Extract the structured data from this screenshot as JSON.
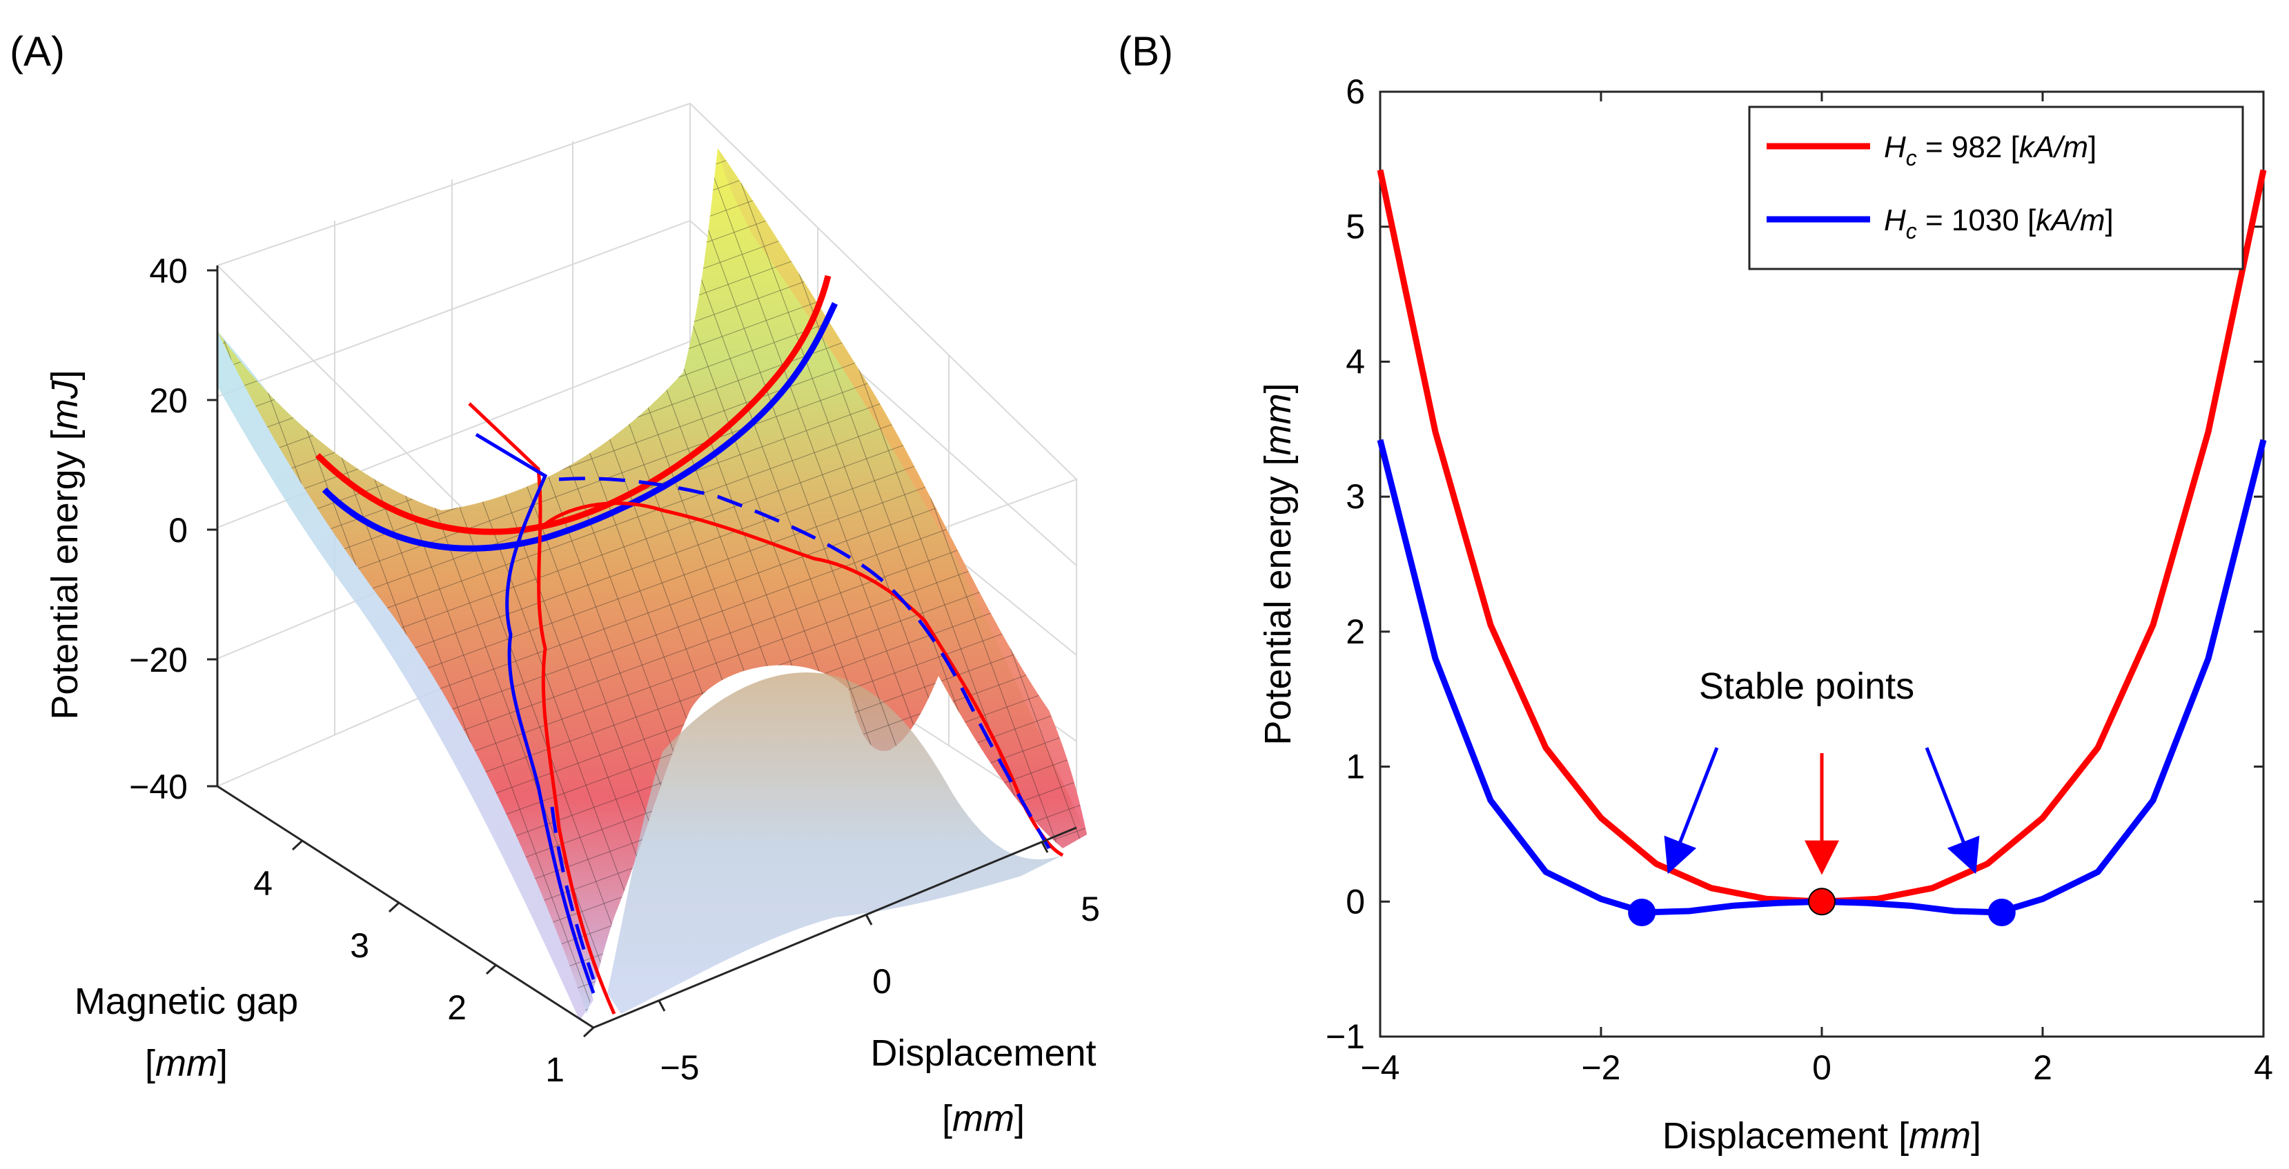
{
  "panel_a": {
    "label": "(A)",
    "z_ticks": [
      "40",
      "20",
      "0",
      "−20",
      "−40"
    ],
    "gap_ticks": [
      "4",
      "3",
      "2",
      "1"
    ],
    "disp_ticks": [
      "−5",
      "0",
      "5"
    ],
    "z_title_pre": "Potential energy [",
    "z_title_unit": "mJ",
    "z_title_post": "]",
    "gap_title_line1": "Magnetic gap",
    "gap_title_line2_pre": "[",
    "gap_title_line2_unit": "mm",
    "gap_title_line2_post": "]",
    "disp_title_line1": "Displacement",
    "disp_title_line2_pre": "[",
    "disp_title_line2_unit": "mm",
    "disp_title_line2_post": "]"
  },
  "panel_b": {
    "label": "(B)",
    "y_title_pre": "Potential energy [",
    "y_title_unit": "mm",
    "y_title_post": "]",
    "x_title_pre": "Displacement [",
    "x_title_unit": "mm",
    "x_title_post": "]",
    "annotation": "Stable points",
    "legend": [
      {
        "sym": "H",
        "sub": "c",
        "value": " = 982 [",
        "unit": "kA/m",
        "close": "]",
        "color": "#ff0000"
      },
      {
        "sym": "H",
        "sub": "c",
        "value": " = 1030 [",
        "unit": "kA/m",
        "close": "]",
        "color": "#0000ff"
      }
    ]
  },
  "chart_data": [
    {
      "type": "surface",
      "title": "(A)",
      "xlabel": "Displacement [mm]",
      "ylabel": "Magnetic gap [mm]",
      "zlabel": "Potential energy [mJ]",
      "xlim": [
        -6,
        6
      ],
      "ylim": [
        1,
        5
      ],
      "zlim": [
        -40,
        40
      ],
      "x_ticks": [
        -5,
        0,
        5
      ],
      "y_ticks": [
        1,
        2,
        3,
        4
      ],
      "z_ticks": [
        -40,
        -20,
        0,
        20,
        40
      ],
      "series": [
        {
          "name": "Hc = 982 [kA/m]",
          "color": "#ff0000"
        },
        {
          "name": "Hc = 1030 [kA/m]",
          "color": "#0000ff"
        }
      ]
    },
    {
      "type": "line",
      "title": "(B)",
      "xlabel": "Displacement [mm]",
      "ylabel": "Potential energy [mm]",
      "xlim": [
        -4,
        4
      ],
      "ylim": [
        -1,
        6
      ],
      "x_ticks": [
        -4,
        -2,
        0,
        2,
        4
      ],
      "y_ticks": [
        -1,
        0,
        1,
        2,
        3,
        4,
        5,
        6
      ],
      "grid": false,
      "legend_position": "top-right",
      "series": [
        {
          "name": "Hc = 982 [kA/m]",
          "color": "#ff0000",
          "x": [
            -4,
            -3.5,
            -3,
            -2.5,
            -2,
            -1.5,
            -1,
            -0.5,
            0,
            0.5,
            1,
            1.5,
            2,
            2.5,
            3,
            3.5,
            4
          ],
          "y": [
            5.42,
            3.48,
            2.05,
            1.14,
            0.62,
            0.28,
            0.1,
            0.02,
            0,
            0.02,
            0.1,
            0.28,
            0.62,
            1.14,
            2.05,
            3.48,
            5.42
          ]
        },
        {
          "name": "Hc = 1030 [kA/m]",
          "color": "#0000ff",
          "x": [
            -4,
            -3.5,
            -3,
            -2.5,
            -2,
            -1.6,
            -1.2,
            -0.8,
            -0.4,
            0,
            0.4,
            0.8,
            1.2,
            1.6,
            2,
            2.5,
            3,
            3.5,
            4
          ],
          "y": [
            3.42,
            1.8,
            0.75,
            0.22,
            0.02,
            -0.08,
            -0.07,
            -0.03,
            -0.01,
            0,
            -0.01,
            -0.03,
            -0.07,
            -0.08,
            0.02,
            0.22,
            0.75,
            1.8,
            3.42
          ]
        }
      ],
      "markers": [
        {
          "series": "Hc = 982 [kA/m]",
          "x": 0,
          "y": 0,
          "color": "#ff0000"
        },
        {
          "series": "Hc = 1030 [kA/m]",
          "x": -1.63,
          "y": -0.08,
          "color": "#0000ff"
        },
        {
          "series": "Hc = 1030 [kA/m]",
          "x": 1.63,
          "y": -0.08,
          "color": "#0000ff"
        }
      ],
      "annotations": [
        {
          "text": "Stable points",
          "arrows": [
            {
              "color": "#0000ff",
              "to": [
                -1.35,
                0.3
              ]
            },
            {
              "color": "#ff0000",
              "to": [
                0,
                0.3
              ]
            },
            {
              "color": "#0000ff",
              "to": [
                1.35,
                0.3
              ]
            }
          ]
        }
      ]
    }
  ]
}
